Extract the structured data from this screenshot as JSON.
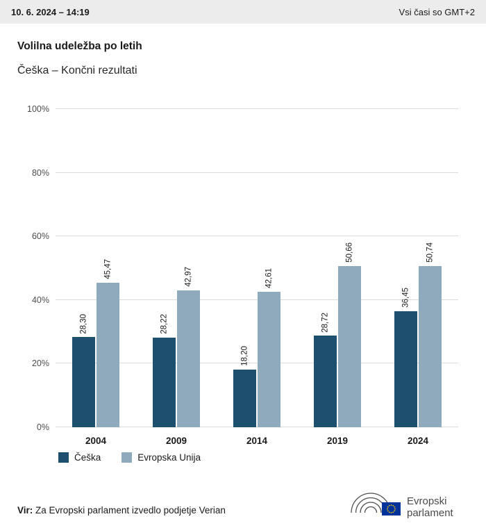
{
  "header": {
    "datetime": "10. 6. 2024 – 14:19",
    "timezone": "Vsi časi so GMT+2"
  },
  "title": "Volilna udeležba po letih",
  "subtitle": "Češka – Končni rezultati",
  "chart_data": {
    "type": "bar",
    "categories": [
      "2004",
      "2009",
      "2014",
      "2019",
      "2024"
    ],
    "series": [
      {
        "name": "Češka",
        "color": "#1d4f6e",
        "values": [
          28.3,
          28.22,
          18.2,
          28.72,
          36.45
        ],
        "labels": [
          "28,30",
          "28,22",
          "18,20",
          "28,72",
          "36,45"
        ]
      },
      {
        "name": "Evropska Unija",
        "color": "#8fa9bd",
        "values": [
          45.47,
          42.97,
          42.61,
          50.66,
          50.74
        ],
        "labels": [
          "45,47",
          "42,97",
          "42,61",
          "50,66",
          "50,74"
        ]
      }
    ],
    "ylim": [
      0,
      100
    ],
    "yticks": [
      "0%",
      "20%",
      "40%",
      "60%",
      "80%",
      "100%"
    ],
    "grid": true,
    "legend_position": "bottom",
    "value_label_rotation": 90
  },
  "legend": [
    {
      "label": "Češka",
      "color": "#1d4f6e"
    },
    {
      "label": "Evropska Unija",
      "color": "#8fa9bd"
    }
  ],
  "footer": {
    "source_label": "Vir:",
    "source_text": "Za Evropski parlament izvedlo podjetje Verian"
  },
  "logo": {
    "line1": "Evropski",
    "line2": "parlament"
  },
  "colors": {
    "header_bg": "#ececec",
    "gridline": "#dcdcdc",
    "bar_dark": "#1d4f6e",
    "bar_light": "#8fa9bd",
    "flag_blue": "#003399",
    "flag_star": "#ffcc00"
  }
}
